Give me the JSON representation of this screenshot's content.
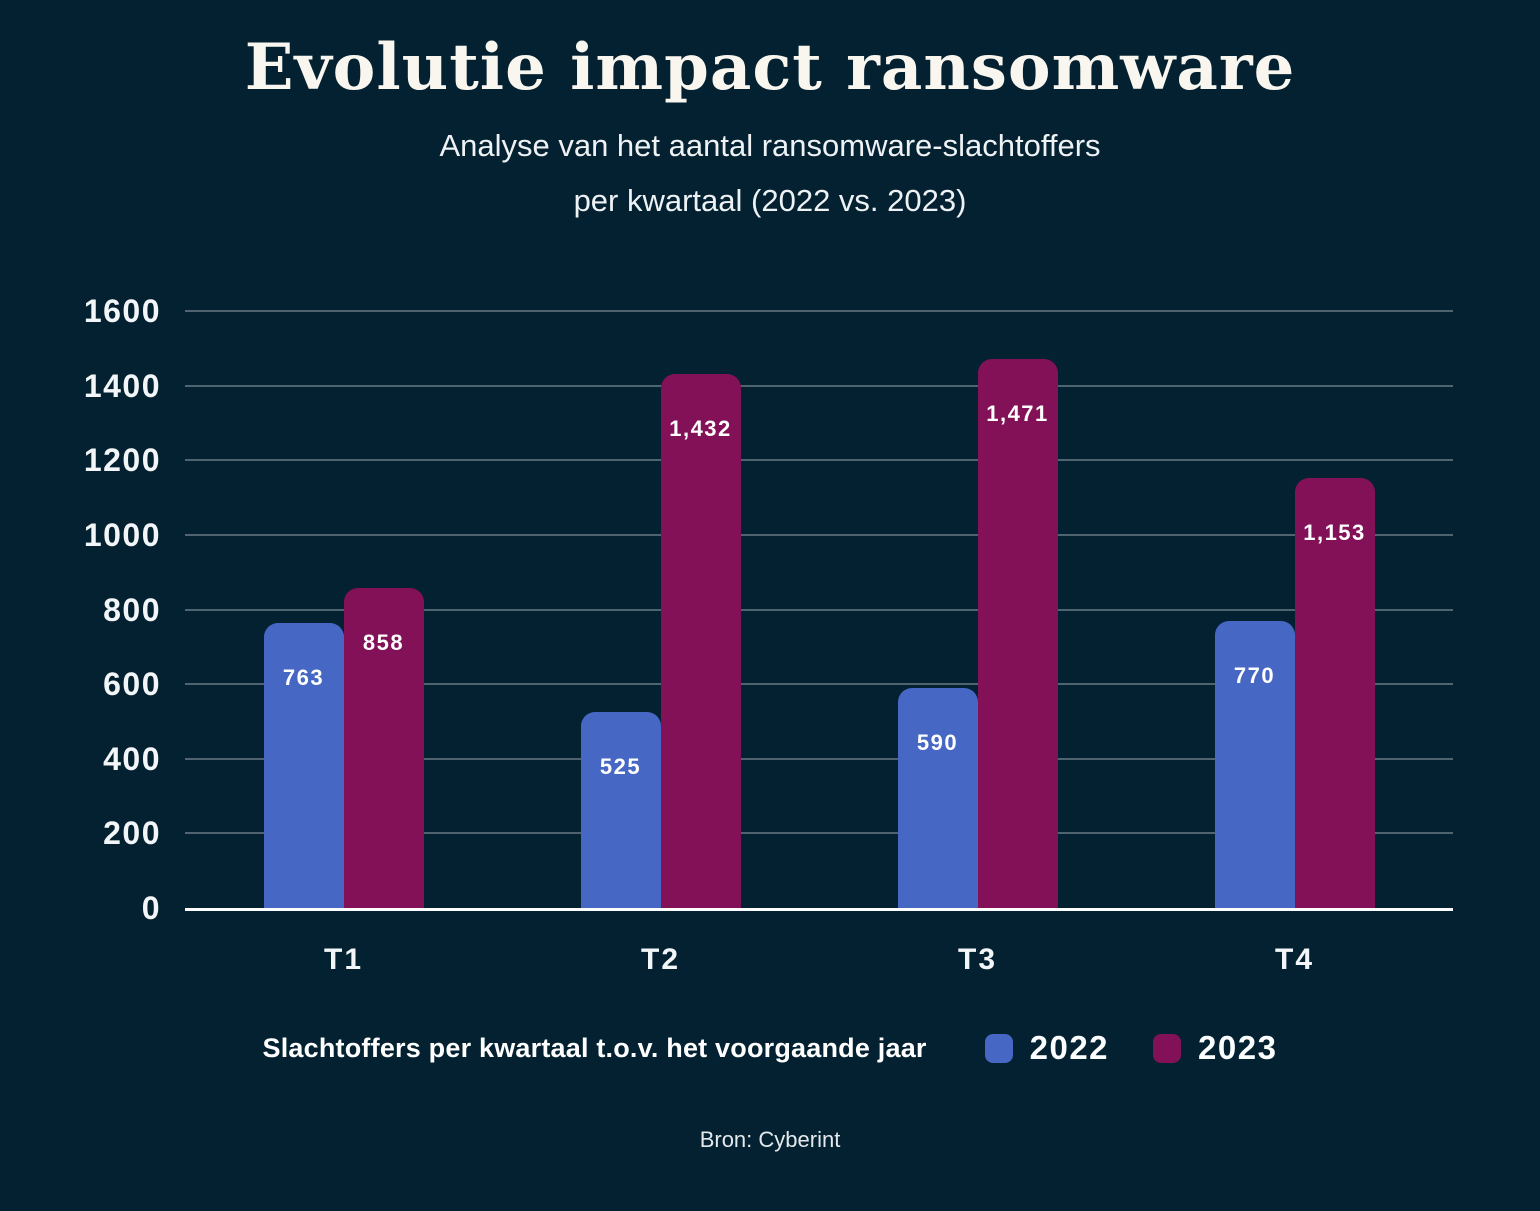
{
  "header": {
    "title": "Evolutie impact ransomware",
    "subtitle_line1": "Analyse van het aantal ransomware-slachtoffers",
    "subtitle_line2": "per kwartaal (2022 vs. 2023)"
  },
  "legend": {
    "caption": "Slachtoffers per kwartaal t.o.v. het voorgaande jaar",
    "items": [
      {
        "label": "2022",
        "color": "#4667c4"
      },
      {
        "label": "2023",
        "color": "#831157"
      }
    ]
  },
  "footer": {
    "source": "Bron: Cyberint"
  },
  "colors": {
    "background": "#032131",
    "bar_2022": "#4667c4",
    "bar_2023": "#831157",
    "title_text": "#f8f6ef",
    "body_text": "#eef2f4",
    "gridline": "rgba(255,255,255,0.30)",
    "axis_line": "#fdfdfd"
  },
  "chart_data": {
    "type": "bar",
    "title": "Evolutie impact ransomware",
    "subtitle": "Analyse van het aantal ransomware-slachtoffers per kwartaal (2022 vs. 2023)",
    "categories": [
      "T1",
      "T2",
      "T3",
      "T4"
    ],
    "series": [
      {
        "name": "2022",
        "color": "#4667c4",
        "values": [
          763,
          525,
          590,
          770
        ],
        "value_labels": [
          "763",
          "525",
          "590",
          "770"
        ]
      },
      {
        "name": "2023",
        "color": "#831157",
        "values": [
          858,
          1432,
          1471,
          1153
        ],
        "value_labels": [
          "858",
          "1,432",
          "1,471",
          "1,153"
        ]
      }
    ],
    "xlabel": "",
    "ylabel": "",
    "ylim": [
      0,
      1600
    ],
    "y_ticks": [
      1600,
      1400,
      1200,
      1000,
      800,
      600,
      400,
      200,
      0
    ],
    "grid": true,
    "legend_position": "bottom",
    "legend_caption": "Slachtoffers per kwartaal t.o.v. het voorgaande jaar",
    "source": "Bron: Cyberint"
  }
}
